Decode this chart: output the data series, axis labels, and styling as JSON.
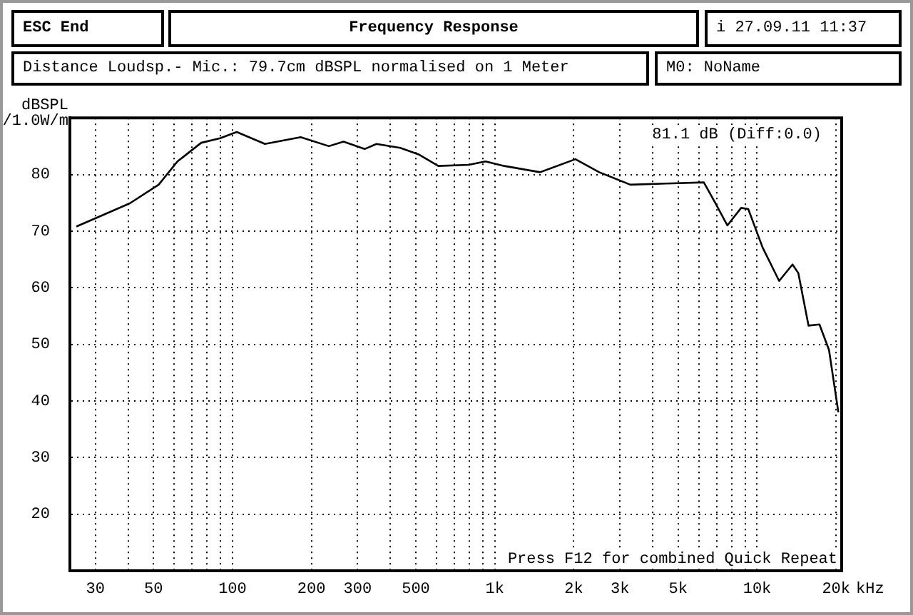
{
  "chart_data": {
    "type": "line",
    "title": "Frequency Response",
    "subtitle": "Distance Loudsp.- Mic.: 79.7cm dBSPL normalised on 1 Meter",
    "ylabel": "dBSPL /1.0W/m",
    "annotations": [
      "ESC End",
      "i 27.09.11 11:37",
      "M0: NoName",
      "81.1 dB (Diff:0.0)",
      "Press F12 for combined Quick Repeat"
    ],
    "series": [
      {
        "color": "#000000",
        "x": [
          25.4,
          29.8,
          40.6,
          52.3,
          61.7,
          76,
          89.7,
          103.8,
          133,
          182,
          233,
          265,
          319,
          354,
          436,
          515,
          609,
          795,
          922,
          1087,
          1488,
          2029,
          2500,
          3285,
          4497,
          6262,
          6942,
          7700,
          8690,
          9250,
          10490,
          12130,
          13640,
          14350,
          15700,
          17280,
          18790,
          20400
        ],
        "values": [
          70.8,
          72.2,
          74.9,
          78.2,
          82.3,
          85.6,
          86.4,
          87.5,
          85.4,
          86.6,
          85,
          85.8,
          84.5,
          85.4,
          84.7,
          83.5,
          81.5,
          81.7,
          82.3,
          81.5,
          80.4,
          82.7,
          80.4,
          78.2,
          78.4,
          78.6,
          74.9,
          71,
          74.1,
          73.9,
          67.1,
          61.2,
          64.1,
          62.6,
          53.3,
          53.5,
          49,
          38
        ]
      }
    ],
    "log": "x",
    "xlim": [
      24,
      21000
    ],
    "xticks": [
      30,
      {
        "value": 40,
        "label": null
      },
      50,
      {
        "value": 60,
        "label": null
      },
      {
        "value": 70,
        "label": null
      },
      {
        "value": 80,
        "label": null
      },
      {
        "value": 90,
        "label": null
      },
      100,
      200,
      300,
      {
        "value": 400,
        "label": null
      },
      500,
      {
        "value": 600,
        "label": null
      },
      {
        "value": 700,
        "label": null
      },
      {
        "value": 800,
        "label": null
      },
      {
        "value": 900,
        "label": null
      },
      {
        "value": 1000,
        "label": "1k"
      },
      {
        "value": 2000,
        "label": "2k"
      },
      {
        "value": 3000,
        "label": "3k"
      },
      {
        "value": 4000,
        "label": null
      },
      {
        "value": 5000,
        "label": "5k"
      },
      {
        "value": 6000,
        "label": null
      },
      {
        "value": 7000,
        "label": null
      },
      {
        "value": 8000,
        "label": null
      },
      {
        "value": 9000,
        "label": null
      },
      {
        "value": 10000,
        "label": "10k"
      },
      {
        "value": 20000,
        "label": "20k"
      }
    ],
    "xlabel": "kHz",
    "ylim": [
      10,
      90
    ],
    "yticks": [
      20,
      30,
      40,
      50,
      60,
      70,
      80
    ],
    "grid": true,
    "legend": false,
    "marker": "none",
    "line_style": "solid"
  }
}
